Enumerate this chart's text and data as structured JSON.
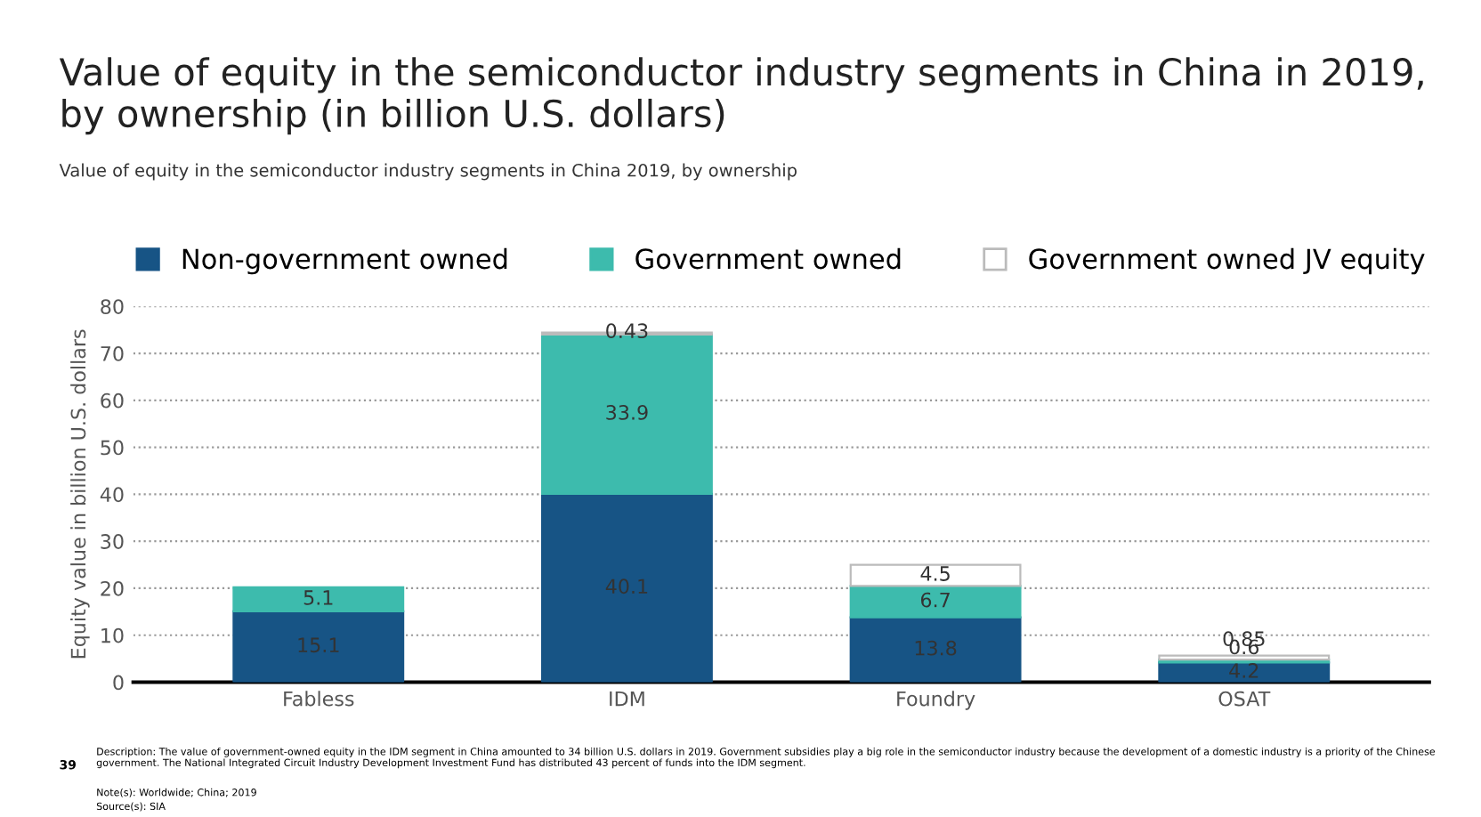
{
  "chart_data": {
    "type": "bar",
    "stacked": true,
    "title": "Value of equity in the semiconductor industry segments in China in 2019, by ownership (in billion U.S. dollars)",
    "subtitle": "Value of equity in the semiconductor industry segments in China 2019, by ownership",
    "ylabel": "Equity value in billion U.S. dollars",
    "categories": [
      "Fabless",
      "IDM",
      "Foundry",
      "OSAT"
    ],
    "series": [
      {
        "name": "Non-government owned",
        "color": "#175485",
        "values": [
          15.1,
          40.1,
          13.8,
          4.2
        ],
        "value_labels": [
          "15.1",
          "40.1",
          "13.8",
          "4.2"
        ]
      },
      {
        "name": "Government owned",
        "color": "#3dbbad",
        "values": [
          5.1,
          33.9,
          6.7,
          0.6
        ],
        "value_labels": [
          "5.1",
          "33.9",
          "6.7",
          "0.6"
        ]
      },
      {
        "name": "Government owned JV equity",
        "color": "#ffffff",
        "values": [
          null,
          0.43,
          4.5,
          0.85
        ],
        "value_labels": [
          null,
          "0.43",
          "4.5",
          "0.85"
        ]
      }
    ],
    "ylim": [
      0,
      80
    ],
    "yticks": [
      0,
      10,
      20,
      30,
      40,
      50,
      60,
      70,
      80
    ],
    "grid": "y",
    "legend": "top",
    "annotations": [
      "39",
      "Description: The value of government-owned equity in the IDM segment in China amounted to 34 billion U.S. dollars in 2019. Government subsidies play a big role in the semiconductor industry because the development of a domestic industry is a priority of the Chinese government. The National Integrated Circuit Industry Development Investment Fund has distributed 43 percent of funds into the IDM segment.",
      "Note(s): Worldwide; China; 2019",
      "Source(s): SIA"
    ]
  }
}
